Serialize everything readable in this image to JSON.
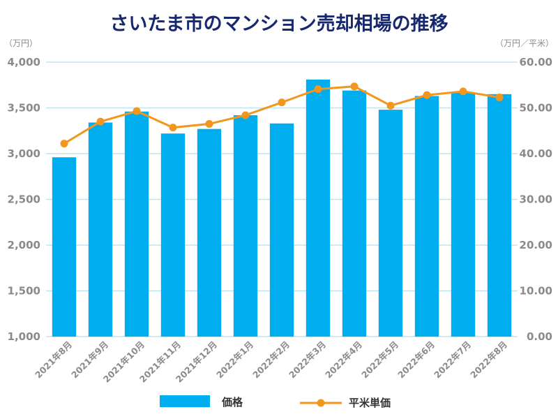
{
  "chart_data": {
    "type": "bar",
    "title": "さいたま市のマンション売却相場の推移",
    "y_left_unit": "（万円）",
    "y_right_unit": "（万円／平米）",
    "categories": [
      "2021年8月",
      "2021年9月",
      "2021年10月",
      "2021年11月",
      "2021年12月",
      "2022年1月",
      "2022年2月",
      "2022年3月",
      "2022年4月",
      "2022年5月",
      "2022年6月",
      "2022年7月",
      "2022年8月"
    ],
    "series": [
      {
        "name": "価格",
        "kind": "bar",
        "axis": "left",
        "color": "#00aeef",
        "values": [
          2960,
          3340,
          3460,
          3220,
          3270,
          3420,
          3330,
          3810,
          3690,
          3480,
          3630,
          3670,
          3650
        ]
      },
      {
        "name": "平米単価",
        "kind": "line",
        "axis": "right",
        "color": "#f2961e",
        "values": [
          42.2,
          47.0,
          49.3,
          45.7,
          46.5,
          48.4,
          51.2,
          54.1,
          54.7,
          50.5,
          52.8,
          53.6,
          52.3
        ]
      }
    ],
    "ylim_left": [
      1000,
      4000
    ],
    "ylim_right": [
      0,
      60
    ],
    "yticks_left": [
      "1,000",
      "1,500",
      "2,000",
      "2,500",
      "3,000",
      "3,500",
      "4,000"
    ],
    "yticks_right": [
      "0.00",
      "10.00",
      "20.00",
      "30.00",
      "40.00",
      "50.00",
      "60.00"
    ],
    "grid": true,
    "legend_position": "bottom"
  }
}
